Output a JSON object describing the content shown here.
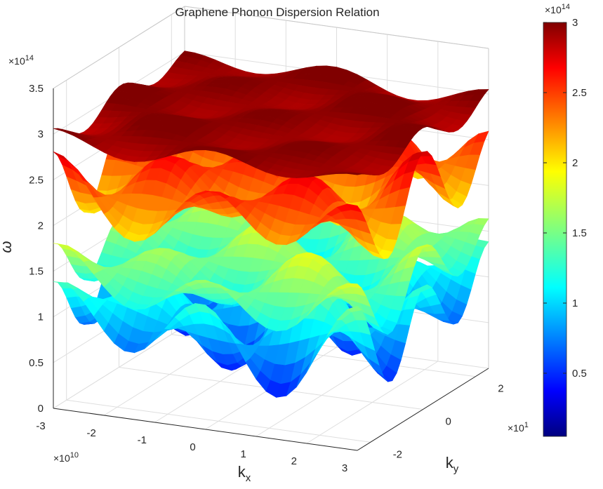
{
  "chart_data": {
    "type": "surface",
    "title": "Graphene Phonon Dispersion Relation",
    "xlabel": "k",
    "xlabel_sub": "x",
    "ylabel": "k",
    "ylabel_sub": "y",
    "zlabel": "ω",
    "x_ticks": [
      "-3",
      "-2",
      "-1",
      "0",
      "1",
      "2",
      "3"
    ],
    "x_exponent": "×10",
    "x_exponent_power": "10",
    "y_ticks": [
      "-2",
      "0",
      "2"
    ],
    "y_exponent": "×10",
    "y_exponent_power": "1",
    "z_ticks": [
      "0",
      "0.5",
      "1",
      "1.5",
      "2",
      "2.5",
      "3",
      "3.5"
    ],
    "z_exponent": "×10",
    "z_exponent_power": "14",
    "colorbar_ticks": [
      "0.5",
      "1",
      "1.5",
      "2",
      "2.5",
      "3"
    ],
    "colorbar_exponent": "×10",
    "colorbar_exponent_power": "14",
    "xlim": [
      -3,
      3
    ],
    "ylim": [
      -2.5,
      2.5
    ],
    "zlim": [
      0,
      3.5
    ],
    "colorbar_range": [
      0.05,
      3.0
    ],
    "colormap": "jet",
    "grid": true,
    "bands": [
      {
        "mean": 1.0,
        "amplitude": 0.45
      },
      {
        "mean": 1.45,
        "amplitude": 0.3
      },
      {
        "mean": 2.35,
        "amplitude": 0.35
      },
      {
        "mean": 2.95,
        "amplitude": 0.1
      }
    ]
  }
}
